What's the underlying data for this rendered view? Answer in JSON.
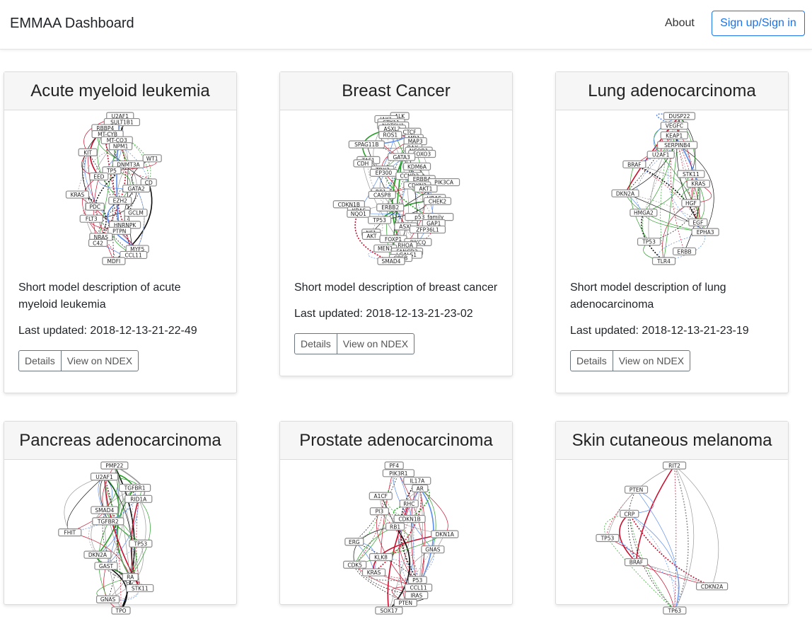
{
  "navbar": {
    "brand": "EMMAA Dashboard",
    "about": "About",
    "signin": "Sign up/Sign in"
  },
  "buttons": {
    "details": "Details",
    "ndex": "View on NDEX"
  },
  "cards": [
    {
      "title": "Acute myeloid leukemia",
      "description": "Short model description of acute myeloid leukemia",
      "updated": "Last updated: 2018-12-13-21-22-49",
      "nodes": [
        "U2AF1",
        "SULT1B1",
        "RBBP4",
        "MT-CYB",
        "MT-CO3",
        "NPM1",
        "KIT",
        "WT1",
        "DNMT3A",
        "TP5",
        "EED",
        "CD",
        "GATA2",
        "KRAS",
        "EZH2",
        "PDC",
        "GCLM",
        "FLT3",
        "HNRNPK",
        "PTPN",
        "NRAS",
        "C42",
        "MYF5",
        "CCL11",
        "MDFI"
      ]
    },
    {
      "title": "Breast Cancer",
      "description": "Short model description of breast cancer",
      "updated": "Last updated: 2018-12-13-21-23-02",
      "nodes": [
        "ALK",
        "JAK1",
        "STK11",
        "NOTCH1",
        "ASXL2",
        "CTCF",
        "ROS1",
        "MD1",
        "MAP3",
        "SPAG11B",
        "BAX",
        "NCOR1",
        "FOXO3",
        "GATA3",
        "TAF1",
        "CDH",
        "KDM6A",
        "TBX3",
        "EP300",
        "CCND3",
        "ERBB4",
        "PIK3CA",
        "CDKN2",
        "AKT1",
        "RB1",
        "CASP8",
        "HRAS",
        "CHEK2",
        "CDKN1B",
        "ERBB2",
        "KRAS",
        "NQO1",
        "p53_family",
        "TP53",
        "GAP1",
        "ASXL",
        "ZFP36L1",
        "NF1",
        "AKT",
        "FOXP1",
        "PIKCQ",
        "RHOA",
        "MEN1",
        "FANCD2",
        "LGALS1",
        "CBFB",
        "SMAD4"
      ]
    },
    {
      "title": "Lung adenocarcinoma",
      "description": "Short model description of lung adenocarcinoma",
      "updated": "Last updated: 2018-12-13-21-23-19",
      "nodes": [
        "DUSP22",
        "VEGFC",
        "KEAP1",
        "SERPINB4",
        "U2AF1",
        "BRAF",
        "STK11",
        "KRAS",
        "DKN2A",
        "HGF",
        "HMGA2",
        "EGF",
        "EPHA3",
        "TP53",
        "ERBB",
        "TLR4"
      ]
    },
    {
      "title": "Pancreas adenocarcinoma",
      "description": "",
      "updated": "",
      "nodes": [
        "PMP22",
        "U2AF1",
        "TGFBR1",
        "RID1A",
        "SMAD4",
        "TGFBR2",
        "FHIT",
        "TP53",
        "DKN2A",
        "GAST",
        "RA",
        "STK11",
        "GNAS",
        "TPO"
      ]
    },
    {
      "title": "Prostate adenocarcinoma",
      "description": "",
      "updated": "",
      "nodes": [
        "PF4",
        "PIK3R1",
        "IL17A",
        "AR",
        "A1CF",
        "RHC",
        "PI3",
        "CDKN1B",
        "RB1",
        "DKN1A",
        "ERG",
        "GNAS",
        "KLK8",
        "CDK5",
        "KRAS",
        "P53",
        "CCL11",
        "IRAS",
        "PTEN",
        "SOX17"
      ]
    },
    {
      "title": "Skin cutaneous melanoma",
      "description": "",
      "updated": "",
      "nodes": [
        "RIT2",
        "PTEN",
        "CRP",
        "TP53",
        "BRAF",
        "CDKN2A",
        "TP63"
      ]
    }
  ]
}
